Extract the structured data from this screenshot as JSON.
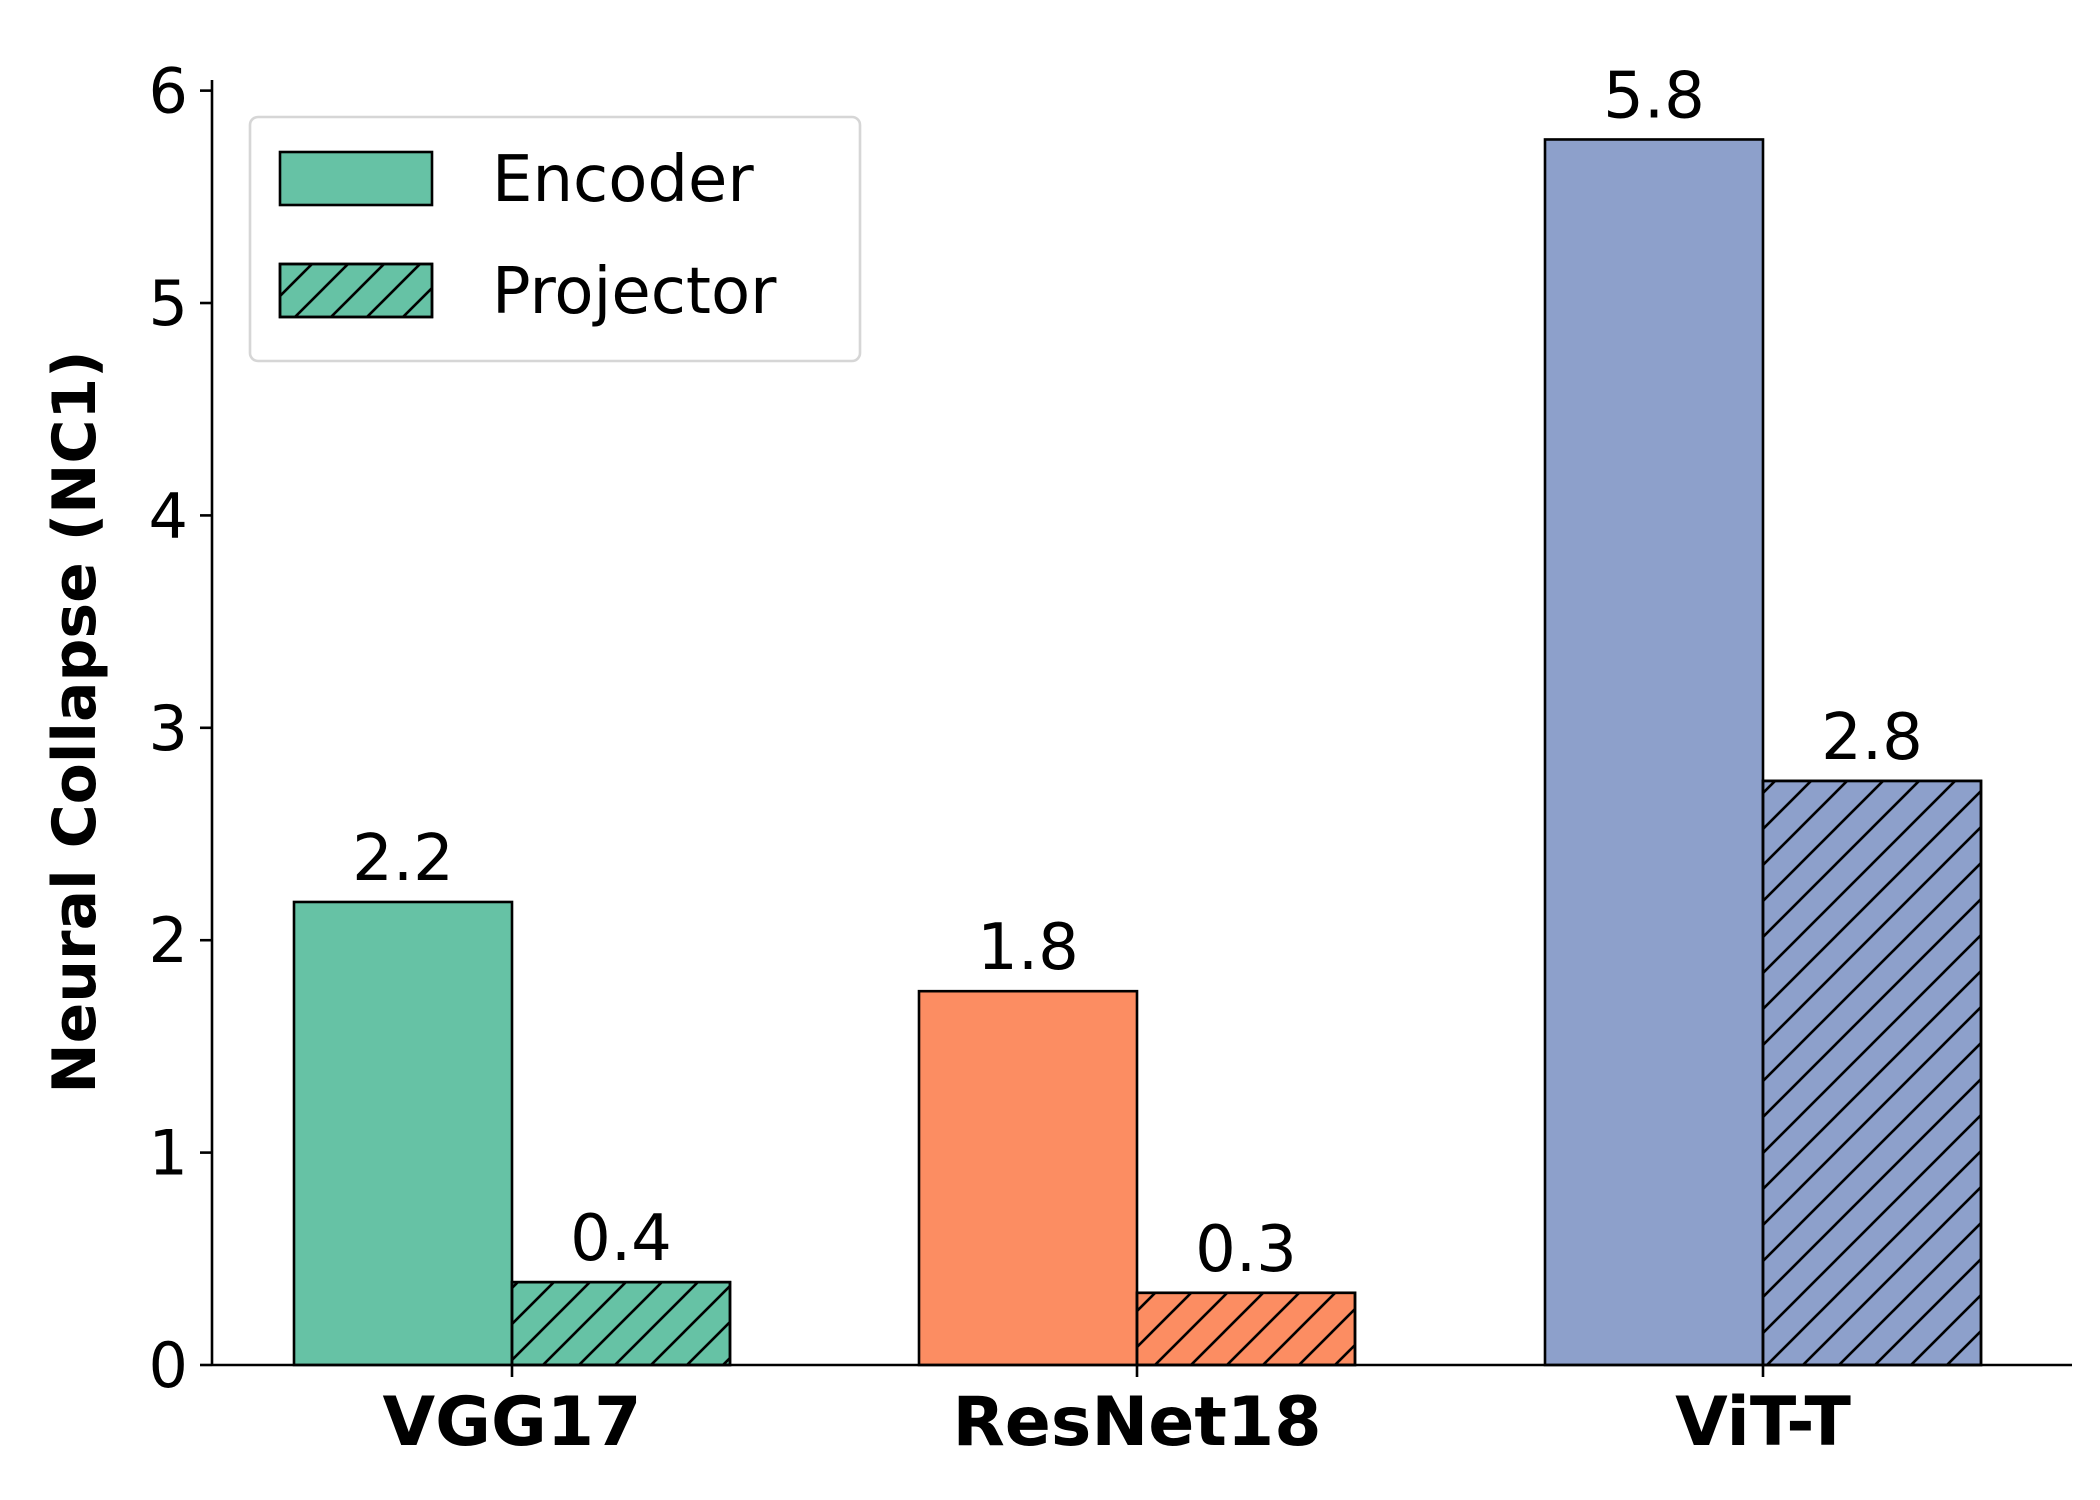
{
  "chart_data": {
    "type": "bar",
    "categories": [
      "VGG17",
      "ResNet18",
      "ViT-T"
    ],
    "series": [
      {
        "name": "Encoder",
        "values": [
          2.18,
          1.76,
          5.77
        ],
        "labels": [
          "2.2",
          "1.8",
          "5.8"
        ],
        "hatched": false
      },
      {
        "name": "Projector",
        "values": [
          0.39,
          0.34,
          2.75
        ],
        "labels": [
          "0.4",
          "0.3",
          "2.8"
        ],
        "hatched": true
      }
    ],
    "category_colors": [
      "#66c2a5",
      "#fc8d62",
      "#8da0cb"
    ],
    "ylabel": "Neural Collapse (NC1)",
    "xlabel": "",
    "title": "",
    "ylim": [
      0,
      6.05
    ],
    "yticks": [
      0,
      1,
      2,
      3,
      4,
      5,
      6
    ],
    "ytick_labels": [
      "0",
      "1",
      "2",
      "3",
      "4",
      "5",
      "6"
    ],
    "legend_position": "top-left",
    "grid": false
  }
}
